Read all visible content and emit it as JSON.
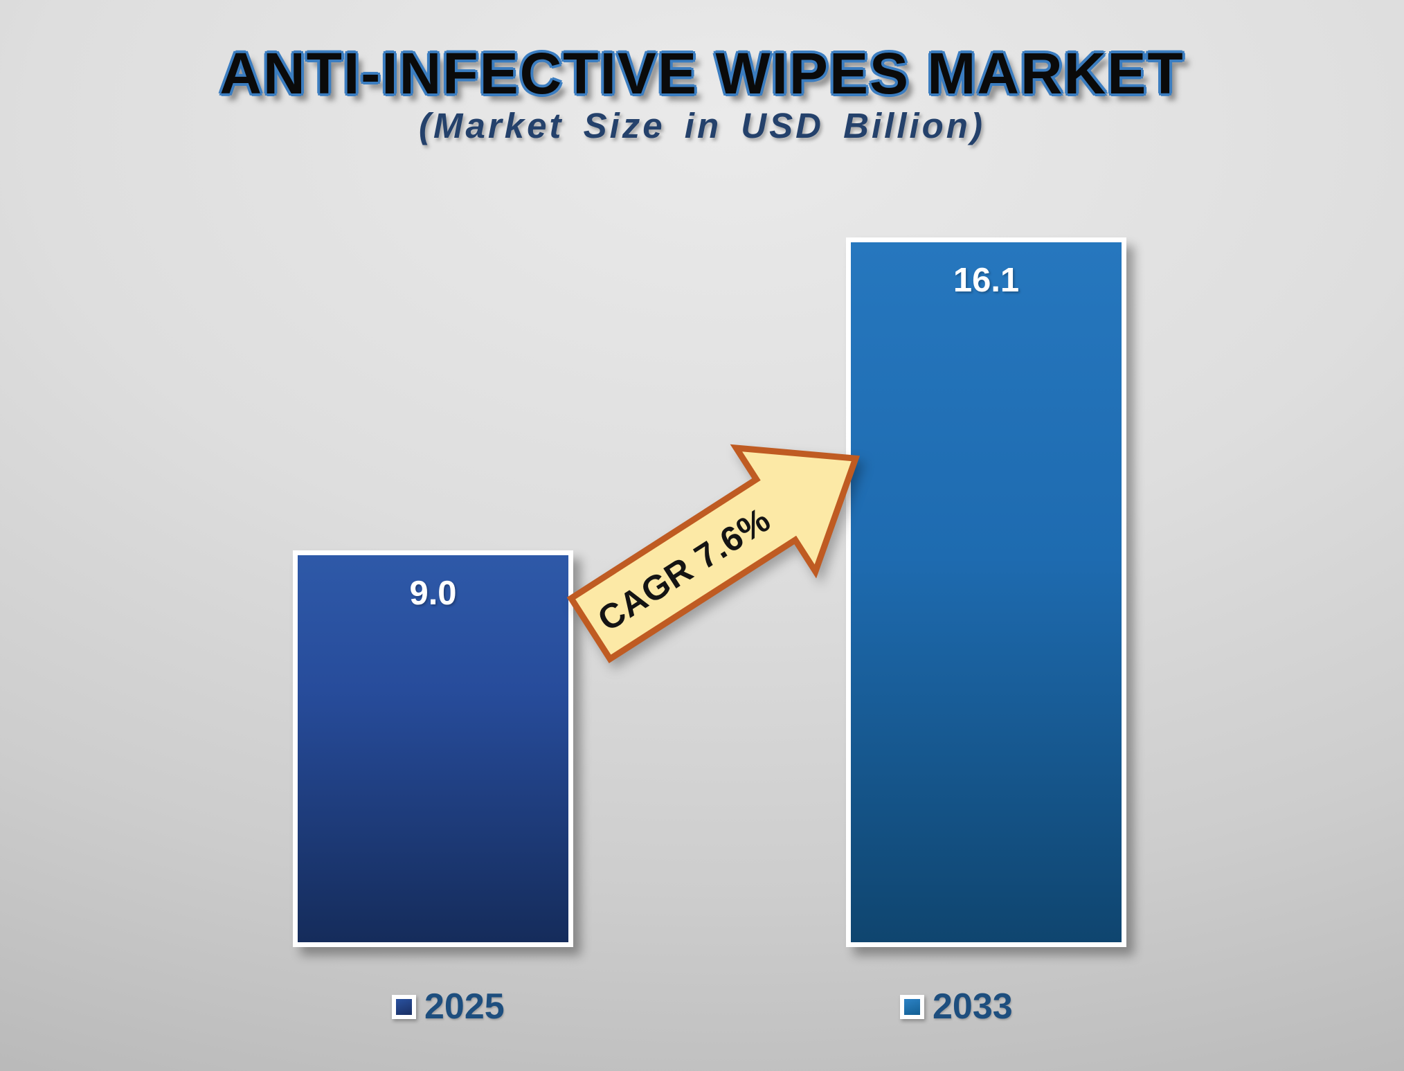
{
  "title": "ANTI-INFECTIVE WIPES MARKET",
  "subtitle": "(Market Size in USD Billion)",
  "chart_data": {
    "type": "bar",
    "title": "ANTI-INFECTIVE WIPES MARKET",
    "subtitle": "(Market Size in USD Billion)",
    "categories": [
      "2025",
      "2033"
    ],
    "series": [
      {
        "name": "Market Size (USD Billion)",
        "values": [
          9.0,
          16.1
        ]
      }
    ],
    "values": [
      9.0,
      16.1
    ],
    "value_labels": [
      "9.0",
      "16.1"
    ],
    "annotation": "CAGR 7.6%",
    "xlabel": "",
    "ylabel": "Market Size in USD Billion",
    "ylim": [
      0,
      16.9
    ],
    "grid": false,
    "legend_position": "bottom",
    "colors": {
      "bar_2025_top": "#2e59a8",
      "bar_2025_bottom": "#152c5b",
      "bar_2033_top": "#2677be",
      "bar_2033_bottom": "#0f456f",
      "arrow_fill": "#fce9a6",
      "arrow_stroke": "#bf5b22",
      "title_outline": "#3b7dc0",
      "subtitle_text": "#24416b",
      "legend_text": "#1d4e7e",
      "value_label_text": "#ffffff"
    }
  },
  "bars": [
    {
      "year": "2025",
      "value": 9.0,
      "label": "9.0"
    },
    {
      "year": "2033",
      "value": 16.1,
      "label": "16.1"
    }
  ],
  "legend": [
    {
      "label": "2025"
    },
    {
      "label": "2033"
    }
  ],
  "annotation": {
    "text": "CAGR 7.6%"
  }
}
